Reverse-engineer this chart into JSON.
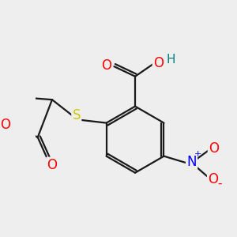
{
  "bg_color": "#eeeeee",
  "bond_color": "#1a1a1a",
  "bond_width": 1.6,
  "atom_colors": {
    "O": "#ff0000",
    "S": "#cccc00",
    "N": "#0000ff",
    "H": "#008080",
    "C": "#1a1a1a"
  },
  "font_size": 11
}
